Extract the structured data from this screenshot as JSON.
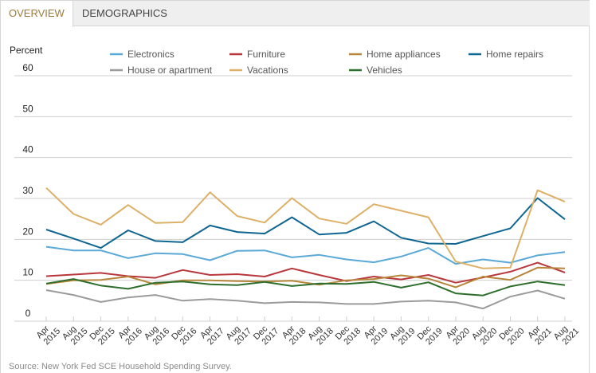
{
  "tabs": [
    {
      "label": "OVERVIEW",
      "active": true
    },
    {
      "label": "DEMOGRAPHICS",
      "active": false
    }
  ],
  "source": "Source: New York Fed SCE Household Spending Survey.",
  "chart_data": {
    "type": "line",
    "title": "",
    "ylabel": "Percent",
    "xlabel": "",
    "ylim": [
      0,
      60
    ],
    "yticks": [
      0,
      10,
      20,
      30,
      40,
      50,
      60
    ],
    "grid": true,
    "legend_position": "top",
    "categories": [
      [
        "Apr",
        "2015"
      ],
      [
        "Aug",
        "2015"
      ],
      [
        "Dec",
        "2015"
      ],
      [
        "Apr",
        "2016"
      ],
      [
        "Aug",
        "2016"
      ],
      [
        "Dec",
        "2016"
      ],
      [
        "Apr",
        "2017"
      ],
      [
        "Aug",
        "2017"
      ],
      [
        "Dec",
        "2017"
      ],
      [
        "Apr",
        "2018"
      ],
      [
        "Aug",
        "2018"
      ],
      [
        "Dec",
        "2018"
      ],
      [
        "Apr",
        "2019"
      ],
      [
        "Aug",
        "2019"
      ],
      [
        "Dec",
        "2019"
      ],
      [
        "Apr",
        "2020"
      ],
      [
        "Aug",
        "2020"
      ],
      [
        "Dec",
        "2020"
      ],
      [
        "Apr",
        "2021"
      ],
      [
        "Aug",
        "2021"
      ]
    ],
    "series": [
      {
        "name": "Electronics",
        "color": "#5aa9d6",
        "values": [
          18.2,
          17.3,
          17.3,
          15.4,
          16.6,
          16.4,
          14.9,
          17.2,
          17.3,
          15.6,
          16.2,
          15.1,
          14.4,
          15.8,
          17.9,
          14.0,
          15.1,
          14.3,
          16.1,
          16.9
        ]
      },
      {
        "name": "Furniture",
        "color": "#b8373c",
        "values": [
          11.0,
          11.4,
          11.8,
          11.0,
          10.6,
          12.5,
          11.3,
          11.5,
          10.9,
          12.9,
          11.3,
          9.8,
          10.9,
          10.2,
          11.3,
          9.4,
          10.7,
          12.1,
          14.3,
          11.9
        ]
      },
      {
        "name": "Home appliances",
        "color": "#b8863b",
        "values": [
          9.1,
          10.0,
          10.1,
          10.9,
          9.0,
          10.0,
          10.0,
          9.8,
          9.7,
          9.9,
          8.9,
          10.0,
          10.3,
          11.2,
          10.4,
          8.3,
          10.9,
          10.1,
          13.1,
          12.9
        ]
      },
      {
        "name": "Home repairs",
        "color": "#0f6690",
        "values": [
          22.4,
          20.2,
          17.9,
          22.2,
          19.6,
          19.3,
          23.4,
          21.8,
          21.4,
          25.4,
          21.2,
          21.6,
          24.4,
          20.4,
          19.0,
          18.9,
          20.8,
          22.7,
          30.1,
          24.9
        ]
      },
      {
        "name": "House or apartment",
        "color": "#9b9b9b",
        "values": [
          7.6,
          6.4,
          4.7,
          5.8,
          6.4,
          5.0,
          5.4,
          5.0,
          4.4,
          4.7,
          4.6,
          4.2,
          4.2,
          4.8,
          5.0,
          4.6,
          3.1,
          6.0,
          7.5,
          5.5
        ]
      },
      {
        "name": "Vacations",
        "color": "#ddb068",
        "values": [
          32.6,
          26.2,
          23.6,
          28.4,
          24.0,
          24.2,
          31.5,
          25.7,
          24.1,
          30.1,
          25.1,
          23.8,
          28.6,
          27.0,
          25.4,
          14.6,
          12.9,
          13.1,
          32.0,
          29.2
        ]
      },
      {
        "name": "Vehicles",
        "color": "#2e6e2c",
        "values": [
          9.2,
          10.3,
          8.7,
          7.9,
          9.4,
          9.7,
          9.0,
          8.8,
          9.6,
          8.6,
          9.2,
          9.1,
          9.6,
          8.2,
          9.5,
          6.8,
          6.3,
          8.5,
          9.7,
          8.8
        ]
      }
    ]
  }
}
